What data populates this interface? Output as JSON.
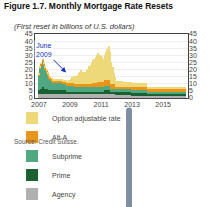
{
  "chart_data": {
    "type": "bar",
    "stacked": true,
    "title": "Figure 1.7. Monthly Mortgage Rate Resets",
    "subtitle": "(First reset in billions of U.S. dollars)",
    "source": "Source: Credit Suisse.",
    "x": [
      2007,
      2007.0833333333333,
      2007.1666666666667,
      2007.25,
      2007.3333333333333,
      2007.4166666666667,
      2007.5,
      2007.5833333333333,
      2007.6666666666667,
      2007.75,
      2007.8333333333333,
      2007.9166666666667,
      2008,
      2008.0833333333333,
      2008.1666666666667,
      2008.25,
      2008.3333333333333,
      2008.4166666666667,
      2008.5,
      2008.5833333333333,
      2008.6666666666667,
      2008.75,
      2008.8333333333333,
      2008.9166666666667,
      2009,
      2009.0833333333333,
      2009.1666666666667,
      2009.25,
      2009.3333333333333,
      2009.4166666666667,
      2009.5,
      2009.5833333333333,
      2009.6666666666667,
      2009.75,
      2009.8333333333333,
      2009.9166666666667,
      2010,
      2010.0833333333333,
      2010.1666666666667,
      2010.25,
      2010.3333333333333,
      2010.4166666666667,
      2010.5,
      2010.5833333333333,
      2010.6666666666667,
      2010.75,
      2010.8333333333333,
      2010.9166666666667,
      2011,
      2011.0833333333333,
      2011.1666666666667,
      2011.25,
      2011.3333333333333,
      2011.4166666666667,
      2011.5,
      2011.5833333333333,
      2011.6666666666667,
      2011.75,
      2011.8333333333333,
      2011.9166666666667,
      2012,
      2012.0833333333333,
      2012.1666666666667,
      2012.25,
      2012.3333333333333,
      2012.4166666666667,
      2012.5,
      2012.5833333333333,
      2012.6666666666667,
      2012.75,
      2012.8333333333333,
      2012.9166666666667,
      2013,
      2013.0833333333333,
      2013.1666666666667,
      2013.25,
      2013.3333333333333,
      2013.4166666666667,
      2013.5,
      2013.5833333333333,
      2013.6666666666667,
      2013.75,
      2013.8333333333333,
      2013.9166666666667,
      2014,
      2014.0833333333333,
      2014.1666666666667,
      2014.25,
      2014.3333333333333,
      2014.4166666666667,
      2014.5,
      2014.5833333333333,
      2014.6666666666667,
      2014.75,
      2014.8333333333333,
      2014.9166666666667,
      2015,
      2015.0833333333333,
      2015.1666666666667,
      2015.25,
      2015.3333333333333,
      2015.4166666666667,
      2015.5,
      2015.5833333333333,
      2015.6666666666667,
      2015.75,
      2015.8333333333333,
      2015.9166666666667,
      2016,
      2016.0833333333333,
      2016.1666666666667,
      2016.25,
      2016.3333333333333,
      2016.4166666666667
    ],
    "xlim": [
      2006.75,
      2016.6
    ],
    "xticks": [
      2007,
      2009,
      2011,
      2013,
      2015
    ],
    "ylim": [
      0,
      45
    ],
    "yticks": [
      0,
      5,
      10,
      15,
      20,
      25,
      30,
      35,
      40,
      45
    ],
    "y2lim": [
      0,
      45
    ],
    "y2ticks": [
      0,
      5,
      10,
      15,
      20,
      25,
      30,
      35,
      40,
      45
    ],
    "grid": true,
    "legend": "bottom",
    "annotations": [
      {
        "text": "June\n2009",
        "x": 2008.75,
        "y": 18,
        "color": "#1133BB"
      }
    ],
    "series": [
      {
        "name": "Agency",
        "color": "#B0B0B0",
        "values": [
          2.5,
          2.5,
          2.5,
          2.5,
          2.5,
          2.5,
          2.5,
          2.5,
          2.5,
          2.5,
          2.5,
          2.5,
          2.5,
          2.5,
          2.5,
          2.5,
          2.5,
          2.5,
          2.5,
          2.5,
          2.5,
          2.5,
          2.5,
          2.5,
          2.5,
          2.5,
          2.5,
          2.5,
          2.5,
          2.5,
          2.5,
          2.5,
          2.5,
          2.5,
          2.5,
          2.5,
          2.5,
          2.5,
          2.5,
          2.5,
          2.5,
          2.5,
          2.5,
          2.5,
          2.5,
          2.5,
          2.5,
          2.5,
          2.5,
          2.5,
          2.5,
          2.5,
          2.5,
          2.5,
          2.5,
          2.5,
          2.5,
          2.5,
          2.5,
          2.5,
          2.0,
          2.0,
          2.0,
          2.0,
          2.0,
          2.0,
          2.0,
          2.0,
          2.0,
          2.0,
          2.0,
          2.0,
          1.5,
          1.5,
          1.5,
          1.5,
          1.5,
          1.5,
          1.5,
          1.5,
          1.5,
          1.5,
          1.5,
          1.5,
          1.5,
          1.5,
          1.5,
          1.5,
          1.5,
          1.5,
          1.5,
          1.5,
          1.5,
          1.5,
          1.5,
          1.5,
          1.5,
          1.5,
          1.5,
          1.5,
          1.5,
          1.5,
          1.5,
          1.5,
          1.5,
          1.5,
          1.5,
          1.5,
          1.5,
          1.5,
          1.5,
          1.5,
          1.5,
          1.5
        ]
      },
      {
        "name": "Prime",
        "color": "#1A6030",
        "values": [
          3,
          4,
          4,
          5,
          5,
          4,
          4,
          4,
          3,
          3,
          3,
          3,
          3,
          3,
          3,
          3,
          3,
          3,
          3,
          3,
          3,
          3,
          2,
          2,
          2,
          2,
          2,
          2,
          2,
          2,
          2,
          2,
          2,
          2,
          2,
          2,
          2,
          2,
          2,
          2,
          2,
          2,
          2,
          2,
          2,
          2,
          2,
          2,
          2,
          2,
          2,
          3,
          3,
          3,
          3,
          3,
          2,
          2,
          2,
          2,
          2,
          2,
          2,
          2,
          2,
          2,
          2,
          2,
          2,
          2,
          2,
          2,
          2,
          2,
          2,
          2,
          2,
          2,
          2,
          2,
          2,
          2,
          2,
          2,
          1.5,
          1.5,
          1.5,
          1.5,
          1.5,
          1.5,
          1.5,
          1.5,
          1.5,
          1.5,
          1.5,
          1.5,
          1.5,
          1.5,
          1.5,
          1.5,
          1.5,
          1.5,
          1.5,
          1.5,
          1.5,
          1.5,
          1.5,
          1.5,
          1.5,
          1.5,
          1.5,
          1.5,
          1.5,
          1.5
        ]
      },
      {
        "name": "Subprime",
        "color": "#4FA882",
        "values": [
          10,
          14,
          16,
          18,
          15,
          13,
          11,
          9,
          8,
          7,
          6,
          5,
          5,
          5,
          5,
          5,
          5,
          5,
          5,
          4,
          4,
          4,
          4,
          4,
          4,
          4,
          4,
          4,
          3,
          3,
          3,
          3,
          3,
          3,
          3,
          3,
          3,
          3,
          3,
          3,
          3,
          3,
          3,
          3,
          3,
          3,
          3,
          3,
          3,
          3,
          3,
          3,
          3,
          3,
          3,
          3,
          2,
          2,
          2,
          2,
          2,
          2,
          2,
          2,
          2,
          2,
          2,
          2,
          2,
          2,
          2,
          2,
          2,
          2,
          2,
          2,
          2,
          2,
          2,
          2,
          2,
          2,
          2,
          2,
          1.5,
          1.5,
          1.5,
          1.5,
          1.5,
          1.5,
          1.5,
          1.5,
          1.5,
          1.5,
          1.5,
          1.5,
          1.5,
          1.5,
          1.5,
          1.5,
          1.5,
          1.5,
          1.5,
          1.5,
          1.5,
          1.5,
          1.5,
          1.5,
          1.5,
          1.5,
          1.5,
          1.5,
          1.5,
          1.5
        ]
      },
      {
        "name": "Alt-A",
        "color": "#E8951A",
        "values": [
          1,
          1,
          1.5,
          2,
          2,
          2,
          2,
          2,
          2,
          2,
          2,
          2,
          2,
          2,
          2,
          2,
          2,
          2,
          2,
          2,
          2,
          2,
          2,
          2,
          2,
          2,
          2,
          2,
          2,
          2,
          2,
          2,
          2,
          2,
          2,
          2,
          2,
          2,
          2,
          2,
          2,
          3,
          3,
          3,
          3,
          4,
          4,
          4,
          4,
          4,
          4,
          4,
          4,
          4,
          4,
          4,
          3,
          3,
          3,
          3,
          2,
          2,
          2,
          2,
          2,
          2,
          2,
          2,
          2,
          2,
          2,
          2,
          2,
          2,
          2,
          2,
          2,
          2,
          2,
          2,
          2,
          2,
          2,
          2,
          1.5,
          1.5,
          1.5,
          1.5,
          1.5,
          1.5,
          1.5,
          1.5,
          1.5,
          1.5,
          1.5,
          1.5,
          1.5,
          1.5,
          1.5,
          1.5,
          1.5,
          1.5,
          1.5,
          1.5,
          1.5,
          1.5,
          1.5,
          1.5,
          1.5,
          1.5,
          1.5,
          1.5,
          1.5,
          1.5
        ]
      },
      {
        "name": "Option adjustable rate",
        "color": "#EDD97A",
        "values": [
          0.5,
          0.5,
          0.5,
          0.5,
          0.5,
          0.5,
          0.5,
          0.5,
          0.5,
          0.5,
          0.5,
          0.5,
          0.5,
          0.5,
          1,
          1,
          1,
          1,
          1,
          1,
          1,
          1,
          1.5,
          2,
          2,
          3,
          4,
          5,
          5,
          6,
          7,
          8,
          9,
          10,
          9,
          8,
          9,
          10,
          11,
          13,
          14,
          15,
          16,
          17,
          18,
          19,
          20,
          19,
          18,
          17,
          16,
          18,
          20,
          22,
          24,
          20,
          16,
          12,
          8,
          5,
          4,
          4,
          4,
          4,
          4,
          3.5,
          3.5,
          3.5,
          3,
          3,
          3,
          3,
          3,
          3,
          3,
          3,
          3,
          3,
          3,
          3,
          3,
          3,
          3,
          3,
          2,
          2,
          2,
          2,
          2,
          2,
          2,
          2,
          2,
          2,
          2,
          2,
          2,
          2,
          2,
          2,
          2,
          2,
          2,
          2,
          2,
          2,
          2,
          2,
          2,
          2,
          2,
          2,
          2,
          2
        ]
      }
    ]
  }
}
